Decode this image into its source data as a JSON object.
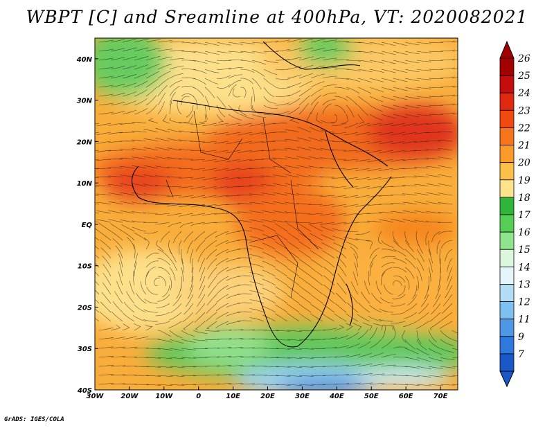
{
  "title": "WBPT [C] and Sreamline at 400hPa, VT: 2020082021",
  "credit": "GrADS: IGES/COLA",
  "axes": {
    "lon_range": [
      -30,
      75
    ],
    "lat_range": [
      -40,
      45
    ],
    "x_ticks": [
      {
        "value": -30,
        "label": "30W"
      },
      {
        "value": -20,
        "label": "20W"
      },
      {
        "value": -10,
        "label": "10W"
      },
      {
        "value": 0,
        "label": "0"
      },
      {
        "value": 10,
        "label": "10E"
      },
      {
        "value": 20,
        "label": "20E"
      },
      {
        "value": 30,
        "label": "30E"
      },
      {
        "value": 40,
        "label": "40E"
      },
      {
        "value": 50,
        "label": "50E"
      },
      {
        "value": 60,
        "label": "60E"
      },
      {
        "value": 70,
        "label": "70E"
      }
    ],
    "y_ticks": [
      {
        "value": 40,
        "label": "40N"
      },
      {
        "value": 30,
        "label": "30N"
      },
      {
        "value": 20,
        "label": "20N"
      },
      {
        "value": 10,
        "label": "10N"
      },
      {
        "value": 0,
        "label": "EQ"
      },
      {
        "value": -10,
        "label": "10S"
      },
      {
        "value": -20,
        "label": "20S"
      },
      {
        "value": -30,
        "label": "30S"
      },
      {
        "value": -40,
        "label": "40S"
      }
    ]
  },
  "colorbar": {
    "levels": [
      {
        "label": "26",
        "color": "#a50000"
      },
      {
        "label": "25",
        "color": "#c40e0e"
      },
      {
        "label": "24",
        "color": "#e02a0f"
      },
      {
        "label": "23",
        "color": "#f04a10"
      },
      {
        "label": "22",
        "color": "#f8741a"
      },
      {
        "label": "21",
        "color": "#fa9a2a"
      },
      {
        "label": "20",
        "color": "#fbbf4a"
      },
      {
        "label": "19",
        "color": "#fde38c"
      },
      {
        "label": "18",
        "color": "#2fb53c"
      },
      {
        "label": "17",
        "color": "#55cf55"
      },
      {
        "label": "16",
        "color": "#90e48e"
      },
      {
        "label": "15",
        "color": "#dcf8dc"
      },
      {
        "label": "14",
        "color": "#e4f5fb"
      },
      {
        "label": "13",
        "color": "#b2ddf5"
      },
      {
        "label": "12",
        "color": "#7ec0ef"
      },
      {
        "label": "11",
        "color": "#4d97e6"
      },
      {
        "label": "9",
        "color": "#2f78dd"
      },
      {
        "label": "7",
        "color": "#1a58c8"
      }
    ]
  }
}
